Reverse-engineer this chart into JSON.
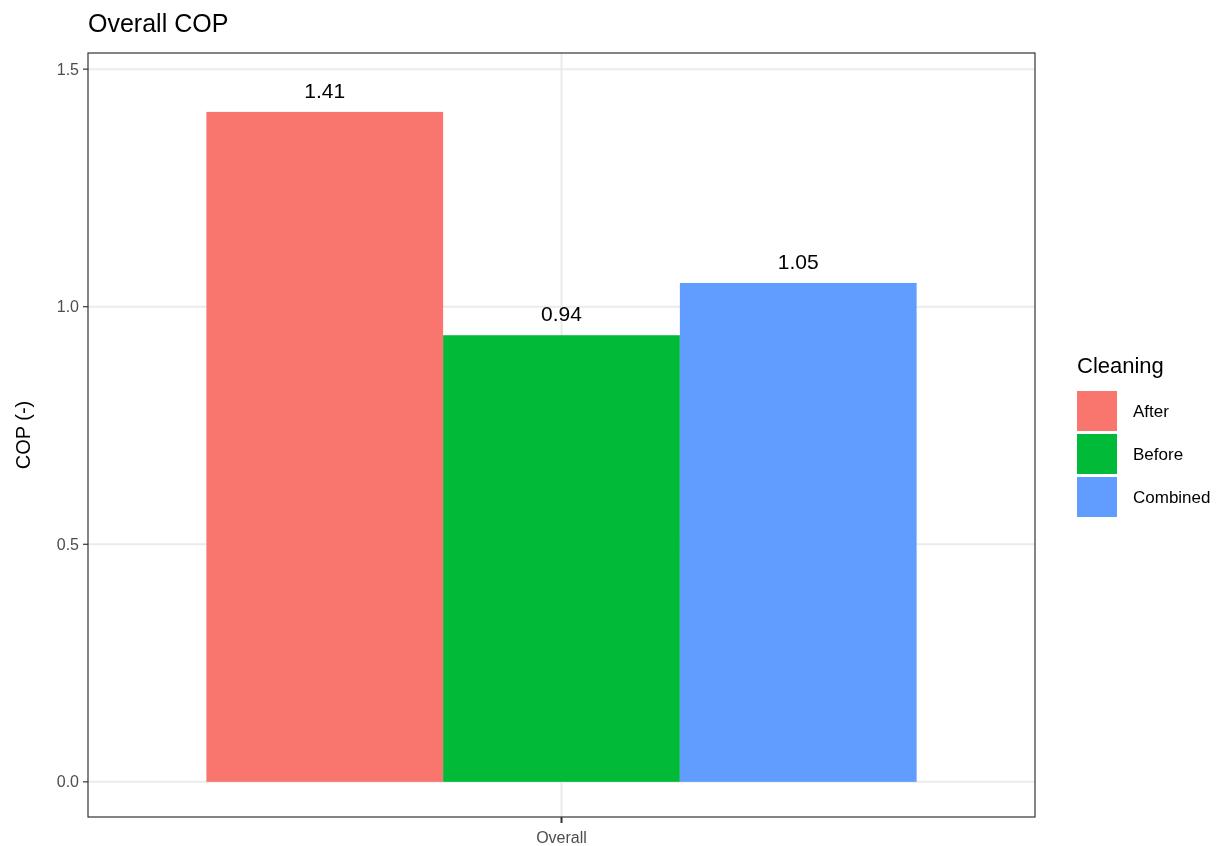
{
  "chart_data": {
    "type": "bar",
    "title": "Overall COP",
    "ylabel": "COP (-)",
    "legend_title": "Cleaning",
    "categories": [
      "Overall"
    ],
    "series": [
      {
        "name": "After",
        "color": "#f8766d",
        "values": [
          1.41
        ]
      },
      {
        "name": "Before",
        "color": "#00ba38",
        "values": [
          0.94
        ]
      },
      {
        "name": "Combined",
        "color": "#619cff",
        "values": [
          1.05
        ]
      }
    ],
    "ylim": [
      -0.074,
      1.534
    ],
    "yticks": [
      {
        "value": 0,
        "label": "0.0"
      },
      {
        "value": 0.5,
        "label": "0.5"
      },
      {
        "value": 1,
        "label": "1.0"
      },
      {
        "value": 1.5,
        "label": "1.5"
      }
    ],
    "grid": true,
    "legend": "right",
    "data_labels": true
  }
}
